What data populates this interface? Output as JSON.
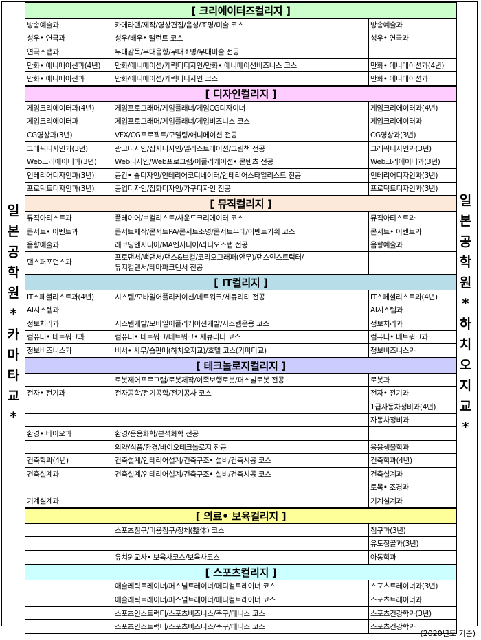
{
  "left_label": [
    "일",
    "본",
    "공",
    "학",
    "원",
    "*",
    "카",
    "마",
    "타",
    "교",
    "*"
  ],
  "right_label": [
    "일",
    "본",
    "공",
    "학",
    "원",
    "*",
    "하",
    "치",
    "오",
    "지",
    "교",
    "*"
  ],
  "sections": [
    {
      "title": "[ 크리에이터즈컬리지 ]",
      "color": "#ccffcc",
      "rows": [
        [
          "방송예술과",
          "카메라맨/제작/영상편집/음성/조명/미술 코스",
          "방송예술과"
        ],
        [
          "성우• 연극과",
          "성우/배우• 탤런트 코스",
          "성우• 연극과"
        ],
        [
          "연극스탭과",
          "무대감독/무대음향/무대조명/무대미술 전공",
          ""
        ],
        [
          "만화• 애니메이션과(4년)",
          "만화/애니메이션/캐릭터디자인/만화• 애니메이션비즈니스 코스",
          "만화• 애니메이션과(4년)"
        ],
        [
          "만화• 애니메이션과",
          "만화/애니메이션/캐릭터디자인 코스",
          "만화• 애니메이션과"
        ]
      ]
    },
    {
      "title": "[ 디자인컬리지 ]",
      "color": "#ffccff",
      "rows": [
        [
          "게임크리에이터과(4년)",
          "게임프로그래머/게임플래너/게임CG디자이너",
          "게임크리에이터과(4년)"
        ],
        [
          "게임크리에이터과",
          "게임프로그래머/게임플래너/게임비즈니스 코스",
          "게임크리에이터과"
        ],
        [
          "CG영상과(3년)",
          "VFX/CG프로젝트/모델링/애니메이션 전공",
          "CG영상과(3년)"
        ],
        [
          "그래픽디자인과(3년)",
          "광고디자인/잡지디자인/일러스트레이션/그림책 전공",
          "그래픽디자인과(3년)"
        ],
        [
          "Web크리에이터과(3년)",
          "Web디자인/Web프로그램/어플리케이션• 콘텐츠 전공",
          "Web크리에이터과(3년)"
        ],
        [
          "인테리어디자인과(3년)",
          "공간• 숍디자인/인테리어코디네이터/인테리어스타일리스트 전공",
          "인테리어디자인과(3년)"
        ],
        [
          "프로덕트디자인과(3년)",
          "공업디자인/잡화디자인/가구디자인 전공",
          "프로덕트디자인과(3년)"
        ]
      ]
    },
    {
      "title": "[ 뮤직컬리지 ]",
      "color": "#fde9d9",
      "rows": [
        [
          "뮤직아티스트과",
          "플레이어/보컬리스트/사운드크리에이터 코스",
          "뮤직아티스트과"
        ],
        [
          "콘서트• 이벤트과",
          "콘서트제작/콘서트PA/콘서트조명/콘서트무대/이벤트기획 코스",
          "콘서트• 이벤트과"
        ],
        [
          "음향예술과",
          "레코딩엔지니어/MA엔지니어/라디오스탭 전공",
          "음향예술과"
        ],
        [
          "댄스퍼포먼스과",
          "프로댄서/백댄서/댄스&보컬/코리오그래퍼(안무)/댄스인스트럭터/\n뮤지컬댄서/테마파크댄서 전공",
          ""
        ]
      ]
    },
    {
      "title": "[ IT컬리지 ]",
      "color": "#b7dde8",
      "rows": [
        [
          "IT스페셜리스트과(4년)",
          "시스템/모바일어플리케이션/네트워크/세큐리티 전공",
          "IT스페셜리스트과(4년)"
        ],
        [
          "AI시스템과",
          "",
          "AI시스템과"
        ],
        [
          "정보처리과",
          "시스템개발/모바일어플리케이션개발/시스템운용 코스",
          "정보처리과"
        ],
        [
          "컴퓨터• 네트워크과",
          "컴퓨터• 네트워크/네트워크• 세큐리티 코스",
          "컴퓨터• 네트워크과"
        ],
        [
          "정보비즈니스과",
          "비서• 사무/숍판매(하치오지교)/호텔 코스(카마타교)",
          "정보비즈니스과"
        ]
      ]
    },
    {
      "title": "[ 테크놀로지컬리지 ]",
      "color": "#ccccff",
      "rows": [
        [
          "",
          "로봇제어프로그램/로봇제작/이족보행로봇/퍼스널로봇 전공",
          "로봇과"
        ],
        [
          "전자• 전기과",
          "전자공학/전기공학/전기공사 코스",
          "전자• 전기과"
        ],
        [
          "",
          "",
          "1급자동차정비과(4년)"
        ],
        [
          "",
          "",
          "자동차정비과"
        ],
        [
          "환경• 바이오과",
          "환경/응용화학/분석화학 전공",
          ""
        ],
        [
          "",
          "의약/식품/환경/바이오테크놀로지 전공",
          "응용생물학과"
        ],
        [
          "건축학과(4년)",
          "건축설계/인테리어설계/건축구조• 설비/건축시공 코스",
          "건축학과(4년)"
        ],
        [
          "건축설계과",
          "건축설계/인테리어설계/건축구조• 설비/건축시공 코스",
          "건축설계과"
        ],
        [
          "",
          "",
          "토목• 조경과"
        ],
        [
          "기계설계과",
          "",
          "기계설계과"
        ]
      ]
    },
    {
      "title": "[ 의료• 보육컬리지 ]",
      "color": "#ffff99",
      "rows": [
        [
          "",
          "스포츠침구/미용침구/정체(整体) 코스",
          "침구과(3년)"
        ],
        [
          "",
          "",
          "유도정골과(3년)"
        ],
        [
          "",
          "유치원교사• 보육사코스/보육사코스",
          "아동학과"
        ]
      ]
    },
    {
      "title": "[ 스포츠컬리지 ]",
      "color": "#ccffff",
      "rows": [
        [
          "",
          "애슬레틱트레이너/퍼스널트레이너/메디컬트레이너 코스",
          "스포츠트레이너과(3년)"
        ],
        [
          "",
          "애슬레틱트레이너/퍼스널트레이너/메디컬트레이너 코스",
          "스포츠트레이너과"
        ],
        [
          "",
          "스포츠인스트럭터/스포츠비즈니스/축구/테니스 코스",
          "스포츠건강학과(3년)"
        ],
        [
          "",
          "스포츠인스트럭터/스포츠비즈니스/축구/테니스 코스",
          "스포츠건강학과"
        ]
      ]
    }
  ],
  "footer": "(2020년도 기준)"
}
